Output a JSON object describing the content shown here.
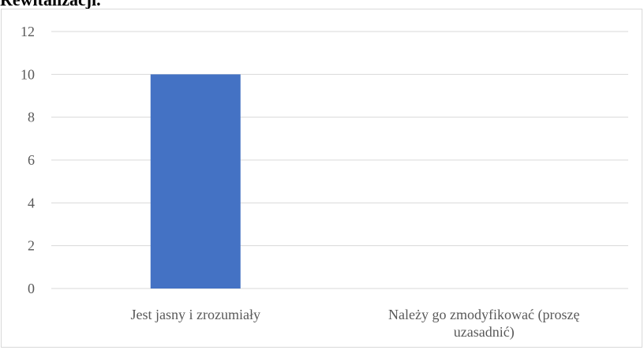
{
  "heading": "Rewitalizacji.",
  "chart_data": {
    "type": "bar",
    "categories": [
      [
        "Jest jasny i zrozumiały"
      ],
      [
        "Należy go zmodyfikować (proszę",
        "uzasadnić)"
      ]
    ],
    "values": [
      10,
      0
    ],
    "ylim": [
      0,
      12
    ],
    "yticks": [
      0,
      2,
      4,
      6,
      8,
      10,
      12
    ],
    "grid": true,
    "bar_color": "#4472c4",
    "grid_color": "#d9d9d9",
    "text_color": "#595959"
  }
}
